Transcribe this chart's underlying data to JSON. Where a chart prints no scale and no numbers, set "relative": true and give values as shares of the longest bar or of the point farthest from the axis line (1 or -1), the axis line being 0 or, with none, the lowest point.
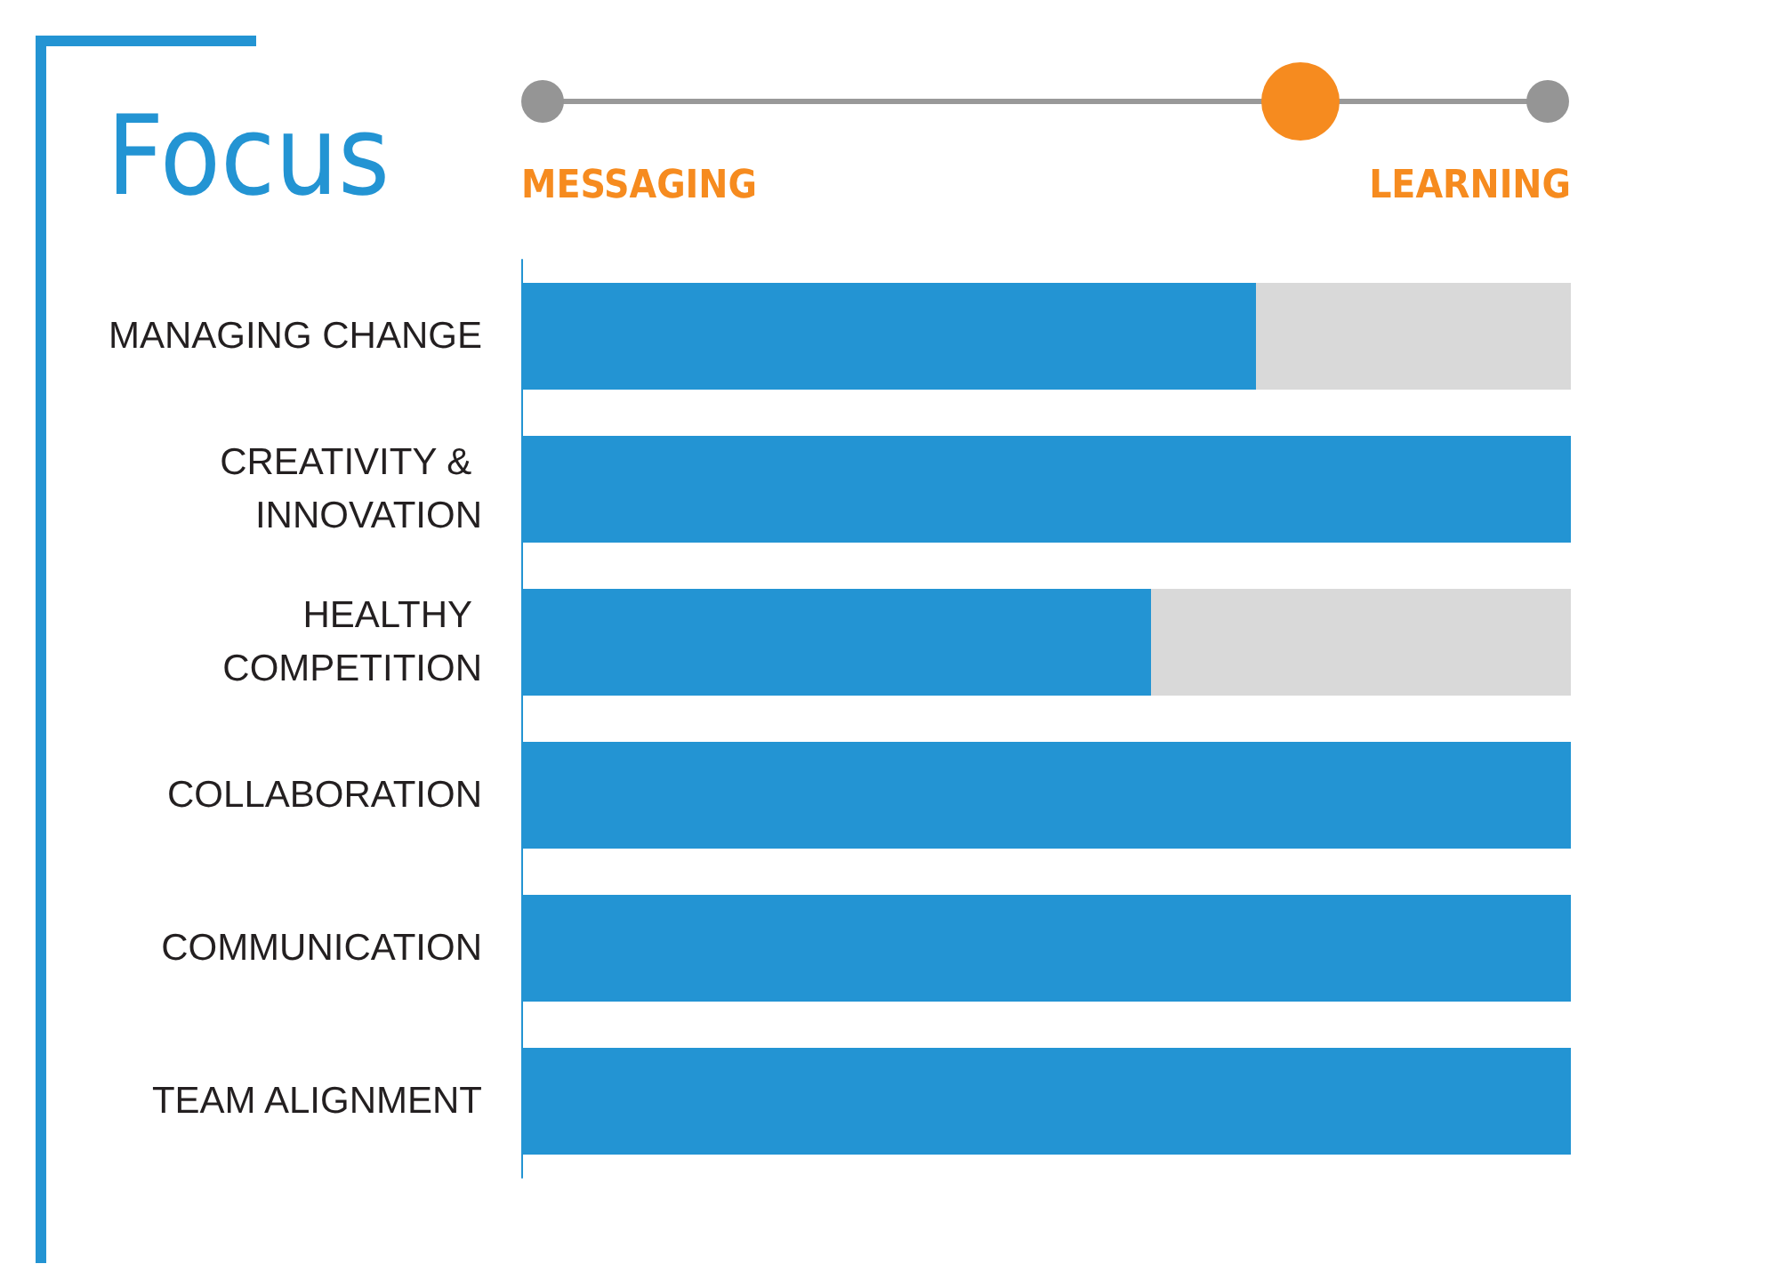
{
  "chart_data": {
    "type": "bar",
    "title": "Focus",
    "orientation": "horizontal",
    "relative": true,
    "categories": [
      "MANAGING CHANGE",
      "CREATIVITY & INNOVATION",
      "HEALTHY COMPETITION",
      "COLLABORATION",
      "COMMUNICATION",
      "TEAM ALIGNMENT"
    ],
    "values": [
      0.7,
      1,
      0.6,
      1,
      1,
      1
    ],
    "color": "#2394d3",
    "annotations": [
      "MESSAGING",
      "LEARNING"
    ]
  }
}
